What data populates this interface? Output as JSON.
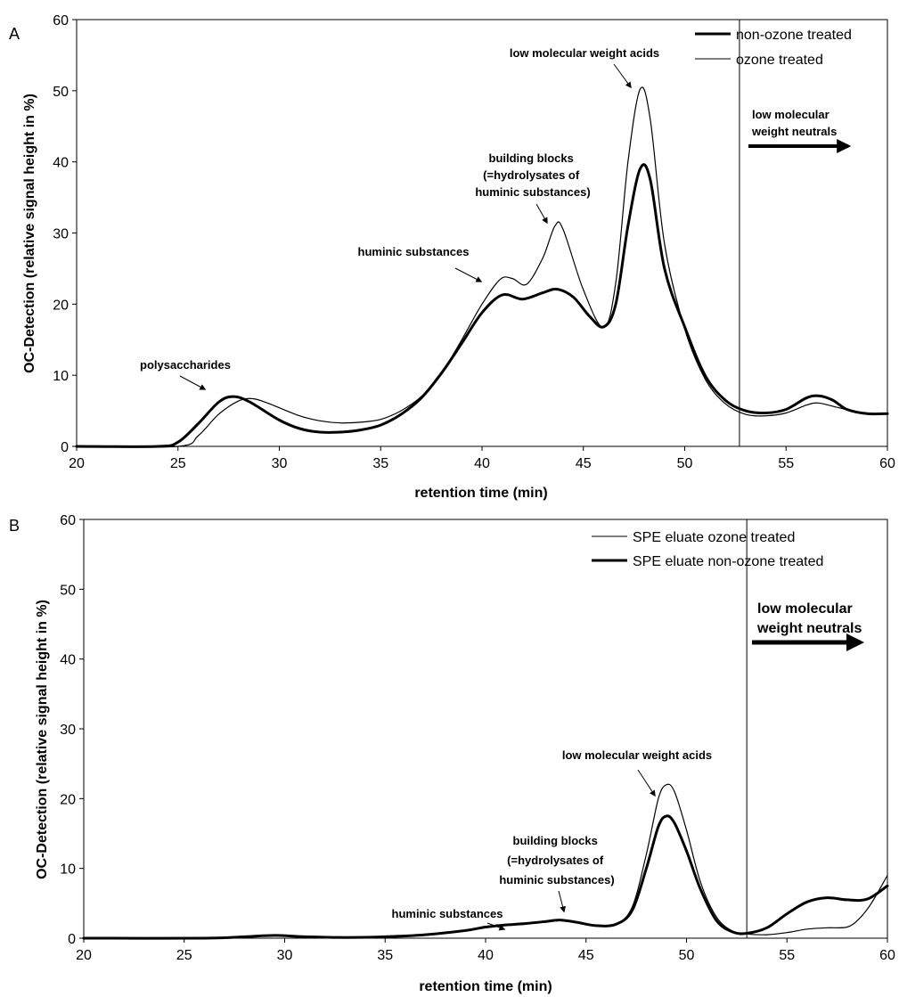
{
  "chart_data": [
    {
      "panel": "A",
      "type": "line",
      "xlabel": "retention time (min)",
      "ylabel": "OC-Detection (relative signal height in %)",
      "xlim": [
        20,
        60
      ],
      "ylim": [
        0,
        60
      ],
      "xticks": [
        20,
        25,
        30,
        35,
        40,
        45,
        50,
        55,
        60
      ],
      "yticks": [
        0,
        10,
        20,
        30,
        40,
        50,
        60
      ],
      "legend_position": "top-right",
      "vline_x": 52.7,
      "series": [
        {
          "name": "non-ozone treated",
          "style": "thick",
          "points": [
            [
              20,
              0
            ],
            [
              24,
              0
            ],
            [
              25,
              0.6
            ],
            [
              26,
              3.2
            ],
            [
              27,
              6.2
            ],
            [
              27.7,
              7.0
            ],
            [
              28.5,
              6.3
            ],
            [
              30,
              3.7
            ],
            [
              31,
              2.5
            ],
            [
              32,
              2.0
            ],
            [
              33,
              2.0
            ],
            [
              34,
              2.3
            ],
            [
              35,
              3.0
            ],
            [
              36,
              4.5
            ],
            [
              37,
              6.8
            ],
            [
              38,
              10.3
            ],
            [
              39,
              14.5
            ],
            [
              40,
              18.8
            ],
            [
              41,
              21.3
            ],
            [
              42,
              20.7
            ],
            [
              43,
              21.6
            ],
            [
              43.7,
              22.1
            ],
            [
              44.5,
              21.0
            ],
            [
              45.3,
              18.3
            ],
            [
              46,
              16.8
            ],
            [
              46.6,
              20.0
            ],
            [
              47.2,
              31.0
            ],
            [
              47.8,
              39.0
            ],
            [
              48.3,
              37.5
            ],
            [
              49,
              25.0
            ],
            [
              50,
              16.8
            ],
            [
              51,
              10.0
            ],
            [
              52,
              6.5
            ],
            [
              53,
              5.0
            ],
            [
              54,
              4.7
            ],
            [
              55,
              5.2
            ],
            [
              56,
              6.8
            ],
            [
              56.6,
              7.1
            ],
            [
              57.3,
              6.5
            ],
            [
              58,
              5.2
            ],
            [
              59,
              4.6
            ],
            [
              60,
              4.6
            ]
          ]
        },
        {
          "name": "ozone treated",
          "style": "thin",
          "points": [
            [
              20,
              0
            ],
            [
              25,
              0
            ],
            [
              26,
              1.5
            ],
            [
              27,
              4.5
            ],
            [
              28,
              6.4
            ],
            [
              28.7,
              6.7
            ],
            [
              29.5,
              6.0
            ],
            [
              31,
              4.3
            ],
            [
              32,
              3.6
            ],
            [
              33,
              3.3
            ],
            [
              34,
              3.4
            ],
            [
              35,
              3.8
            ],
            [
              36,
              5.0
            ],
            [
              37,
              7.0
            ],
            [
              38,
              10.3
            ],
            [
              39,
              15.0
            ],
            [
              40,
              20.0
            ],
            [
              40.9,
              23.5
            ],
            [
              41.5,
              23.6
            ],
            [
              42.2,
              22.8
            ],
            [
              43,
              26.5
            ],
            [
              43.6,
              31.0
            ],
            [
              44,
              30.5
            ],
            [
              45,
              22.0
            ],
            [
              46,
              16.7
            ],
            [
              46.6,
              23.0
            ],
            [
              47.2,
              40.0
            ],
            [
              47.8,
              50.2
            ],
            [
              48.3,
              46.0
            ],
            [
              49,
              28.5
            ],
            [
              50,
              16.5
            ],
            [
              51,
              9.5
            ],
            [
              52,
              6.0
            ],
            [
              53,
              4.5
            ],
            [
              54,
              4.3
            ],
            [
              55,
              4.7
            ],
            [
              56,
              5.8
            ],
            [
              56.6,
              6.1
            ],
            [
              57.5,
              5.5
            ],
            [
              58.5,
              4.8
            ],
            [
              59,
              4.6
            ],
            [
              60,
              4.6
            ]
          ]
        }
      ],
      "annotations": [
        {
          "lines": [
            "low molecular weight acids"
          ]
        },
        {
          "lines": [
            "building blocks",
            "(=hydrolysates of",
            "huminic substances)"
          ]
        },
        {
          "lines": [
            "huminic substances"
          ]
        },
        {
          "lines": [
            "polysaccharides"
          ]
        },
        {
          "lines": [
            "low molecular",
            "weight neutrals"
          ]
        }
      ]
    },
    {
      "panel": "B",
      "type": "line",
      "xlabel": "retention time (min)",
      "ylabel": "OC-Detection (relative signal height in %)",
      "xlim": [
        20,
        60
      ],
      "ylim": [
        0,
        60
      ],
      "xticks": [
        20,
        25,
        30,
        35,
        40,
        45,
        50,
        55,
        60
      ],
      "yticks": [
        0,
        10,
        20,
        30,
        40,
        50,
        60
      ],
      "legend_position": "top-right",
      "vline_x": 53,
      "series": [
        {
          "name": "SPE eluate ozone treated",
          "style": "thin",
          "points": [
            [
              20,
              0
            ],
            [
              26,
              0
            ],
            [
              28,
              0.2
            ],
            [
              29.5,
              0.4
            ],
            [
              31,
              0.2
            ],
            [
              33,
              0.1
            ],
            [
              35,
              0.2
            ],
            [
              37,
              0.5
            ],
            [
              39,
              1.1
            ],
            [
              40,
              1.6
            ],
            [
              41,
              1.9
            ],
            [
              42,
              2.1
            ],
            [
              43,
              2.4
            ],
            [
              43.7,
              2.6
            ],
            [
              44.5,
              2.3
            ],
            [
              45.5,
              1.8
            ],
            [
              46.5,
              2.0
            ],
            [
              47.3,
              4.5
            ],
            [
              48,
              12.0
            ],
            [
              48.6,
              20.0
            ],
            [
              49,
              22.0
            ],
            [
              49.4,
              21.0
            ],
            [
              50,
              15.5
            ],
            [
              50.7,
              8.0
            ],
            [
              51.5,
              3.0
            ],
            [
              52.3,
              1.0
            ],
            [
              53,
              0.6
            ],
            [
              54,
              0.5
            ],
            [
              55,
              0.8
            ],
            [
              56,
              1.3
            ],
            [
              57,
              1.5
            ],
            [
              58,
              1.6
            ],
            [
              58.6,
              2.8
            ],
            [
              59.2,
              5.0
            ],
            [
              60,
              9.0
            ]
          ]
        },
        {
          "name": "SPE eluate non-ozone treated",
          "style": "thick",
          "points": [
            [
              20,
              0
            ],
            [
              26,
              0
            ],
            [
              28,
              0.2
            ],
            [
              29.5,
              0.4
            ],
            [
              31,
              0.2
            ],
            [
              33,
              0.1
            ],
            [
              35,
              0.2
            ],
            [
              37,
              0.5
            ],
            [
              39,
              1.1
            ],
            [
              40,
              1.6
            ],
            [
              41,
              1.9
            ],
            [
              42,
              2.1
            ],
            [
              43,
              2.4
            ],
            [
              43.7,
              2.6
            ],
            [
              44.5,
              2.3
            ],
            [
              45.5,
              1.8
            ],
            [
              46.5,
              2.0
            ],
            [
              47.3,
              4.0
            ],
            [
              48,
              10.0
            ],
            [
              48.6,
              16.0
            ],
            [
              49,
              17.5
            ],
            [
              49.4,
              16.5
            ],
            [
              50,
              12.5
            ],
            [
              50.7,
              7.0
            ],
            [
              51.5,
              2.5
            ],
            [
              52.3,
              0.9
            ],
            [
              53,
              0.7
            ],
            [
              54,
              1.5
            ],
            [
              55,
              3.5
            ],
            [
              56,
              5.2
            ],
            [
              57,
              5.8
            ],
            [
              58,
              5.5
            ],
            [
              59,
              5.6
            ],
            [
              60,
              7.5
            ]
          ]
        }
      ],
      "annotations": [
        {
          "lines": [
            "low molecular weight acids"
          ]
        },
        {
          "lines": [
            "building blocks",
            "(=hydrolysates of",
            "huminic substances)"
          ]
        },
        {
          "lines": [
            "huminic substances"
          ]
        },
        {
          "lines": [
            "low molecular",
            "weight neutrals"
          ]
        }
      ]
    }
  ]
}
